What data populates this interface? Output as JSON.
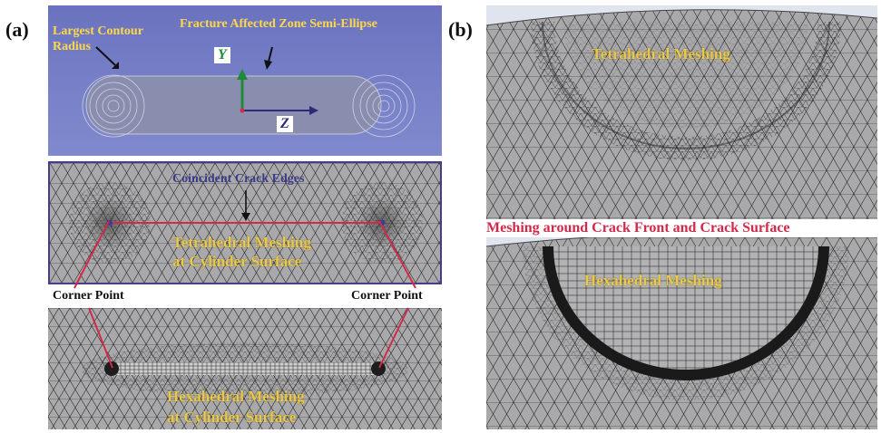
{
  "panel_a": {
    "label": "(a)",
    "top_labels": {
      "largest_contour_line1": "Largest Contour",
      "largest_contour_line2": "Radius",
      "fracture_zone": "Fracture Affected Zone Semi-Ellipse"
    },
    "axes": {
      "y": "Y",
      "z": "Z"
    },
    "middle": {
      "coincident": "Coincident Crack Edges",
      "tetra_line1": "Tetrahedral Meshing",
      "tetra_line2": "at Cylinder Surface"
    },
    "corner_left": "Corner Point",
    "corner_right": "Corner Point",
    "bottom": {
      "hexa_line1": "Hexahedral Meshing",
      "hexa_line2": "at Cylinder Surface"
    }
  },
  "panel_b": {
    "label": "(b)",
    "top_label": "Tetrahedral Meshing",
    "middle_caption": "Meshing around Crack Front and Crack Surface",
    "bottom_label": "Hexahedral Meshing"
  },
  "colors": {
    "blue_bg": "#6f79c4",
    "mesh_bg": "#a9a9ab",
    "mesh_line": "#1d1d1d",
    "red": "#d02a4a",
    "yellow": "#e9c84a",
    "green_axis": "#1f8a3a",
    "navy": "#2b2b7a"
  }
}
